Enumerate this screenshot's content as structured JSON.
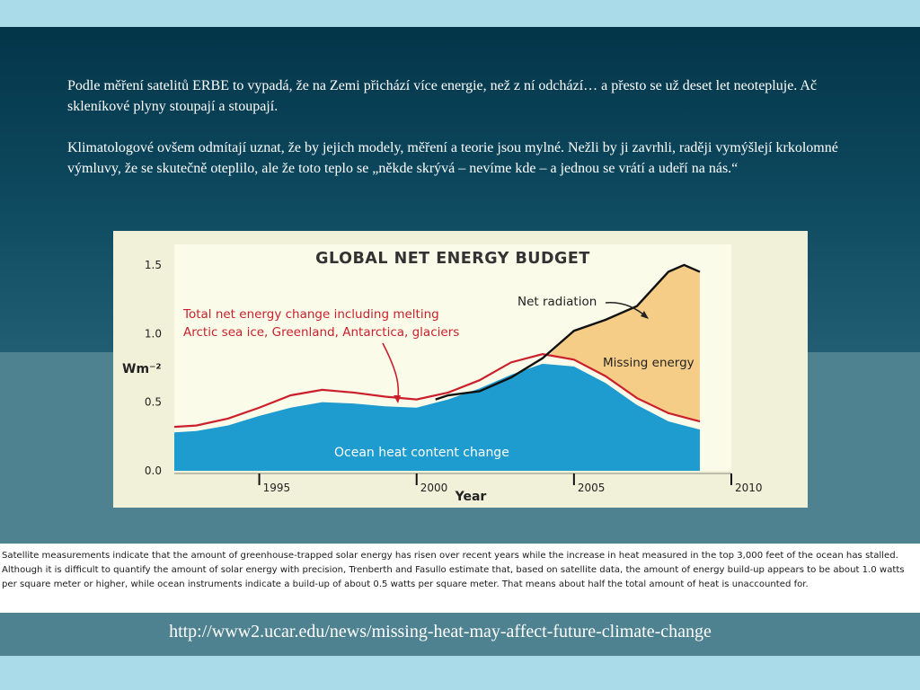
{
  "slide": {
    "paragraphs": [
      "Podle měření satelitů ERBE to vypadá, že na Zemi přichází více energie, než z ní odchází… a přesto se už deset let neotepluje. Ač skleníkové plyny stoupají a stoupají.",
      "Klimatologové ovšem odmítají uznat, že by jejich modely, měření a teorie jsou mylné. Nežli by ji zavrhli, raději vymýšlejí krkolomné výmluvy, že se skutečně oteplilo, ale že toto teplo se „někde skrývá – nevíme kde – a jednou se vrátí a udeří na nás.“"
    ],
    "caption": "Satellite measurements indicate that the amount of greenhouse-trapped solar energy has risen over recent years while the increase in heat measured in the top 3,000 feet of the ocean has stalled. Although it is difficult to quantify the amount of solar energy with precision, Trenberth and Fasullo estimate that, based on satellite data, the amount of energy build-up appears to be about 1.0 watts per square meter or higher, while ocean instruments indicate a build-up of about 0.5 watts per square meter. That means about half the total amount of heat is unaccounted for.",
    "url": "http://www2.ucar.edu/news/missing-heat-may-affect-future-climate-change"
  },
  "colors": {
    "ocean_fill": "#1f9ccf",
    "missing_fill": "#f6cd86",
    "total_line": "#cc1f2c",
    "net_radiation_line": "#111111",
    "plot_bg": "#fbfbe9",
    "annotation_red": "#c8202e"
  },
  "chart_data": {
    "type": "area",
    "title": "GLOBAL NET ENERGY BUDGET",
    "xlabel": "Year",
    "ylabel": "Wm⁻²",
    "xlim": [
      1992.3,
      2010
    ],
    "ylim": [
      0,
      1.65
    ],
    "x_ticks": [
      1995,
      2000,
      2005,
      2010
    ],
    "y_ticks": [
      0.0,
      0.5,
      1.0,
      1.5
    ],
    "x_tick_labels": [
      "1995",
      "2000",
      "2005",
      "2010"
    ],
    "y_tick_labels": [
      "0.0",
      "0.5",
      "1.0",
      "1.5"
    ],
    "grid": false,
    "series": [
      {
        "name": "Ocean heat content change",
        "kind": "area",
        "x": [
          1992.3,
          1993,
          1994,
          1995,
          1996,
          1997,
          1998,
          1999,
          2000,
          2001,
          2002,
          2003,
          2004,
          2005,
          2006,
          2007,
          2008,
          2009
        ],
        "y": [
          0.28,
          0.29,
          0.33,
          0.4,
          0.46,
          0.5,
          0.49,
          0.47,
          0.46,
          0.52,
          0.6,
          0.7,
          0.78,
          0.76,
          0.64,
          0.48,
          0.36,
          0.3
        ]
      },
      {
        "name": "Total net energy change including melting Arctic sea ice, Greenland, Antarctica, glaciers",
        "kind": "line",
        "x": [
          1992.3,
          1993,
          1994,
          1995,
          1996,
          1997,
          1998,
          1999,
          2000,
          2001,
          2002,
          2003,
          2004,
          2005,
          2006,
          2007,
          2008,
          2009
        ],
        "y": [
          0.32,
          0.33,
          0.38,
          0.46,
          0.55,
          0.59,
          0.57,
          0.54,
          0.52,
          0.57,
          0.66,
          0.79,
          0.85,
          0.81,
          0.69,
          0.53,
          0.42,
          0.36
        ]
      },
      {
        "name": "Net radiation",
        "kind": "line",
        "x": [
          2000.6,
          2001,
          2002,
          2003,
          2004,
          2005,
          2006,
          2007,
          2008,
          2008.5,
          2009
        ],
        "y": [
          0.52,
          0.55,
          0.58,
          0.68,
          0.82,
          1.02,
          1.1,
          1.2,
          1.45,
          1.5,
          1.45
        ]
      }
    ],
    "annotations": {
      "net_radiation": "Net radiation",
      "missing_energy": "Missing energy",
      "total_line1": "Total net energy change including melting",
      "total_line2": "Arctic sea ice, Greenland, Antarctica, glaciers",
      "ocean": "Ocean heat content change"
    }
  }
}
